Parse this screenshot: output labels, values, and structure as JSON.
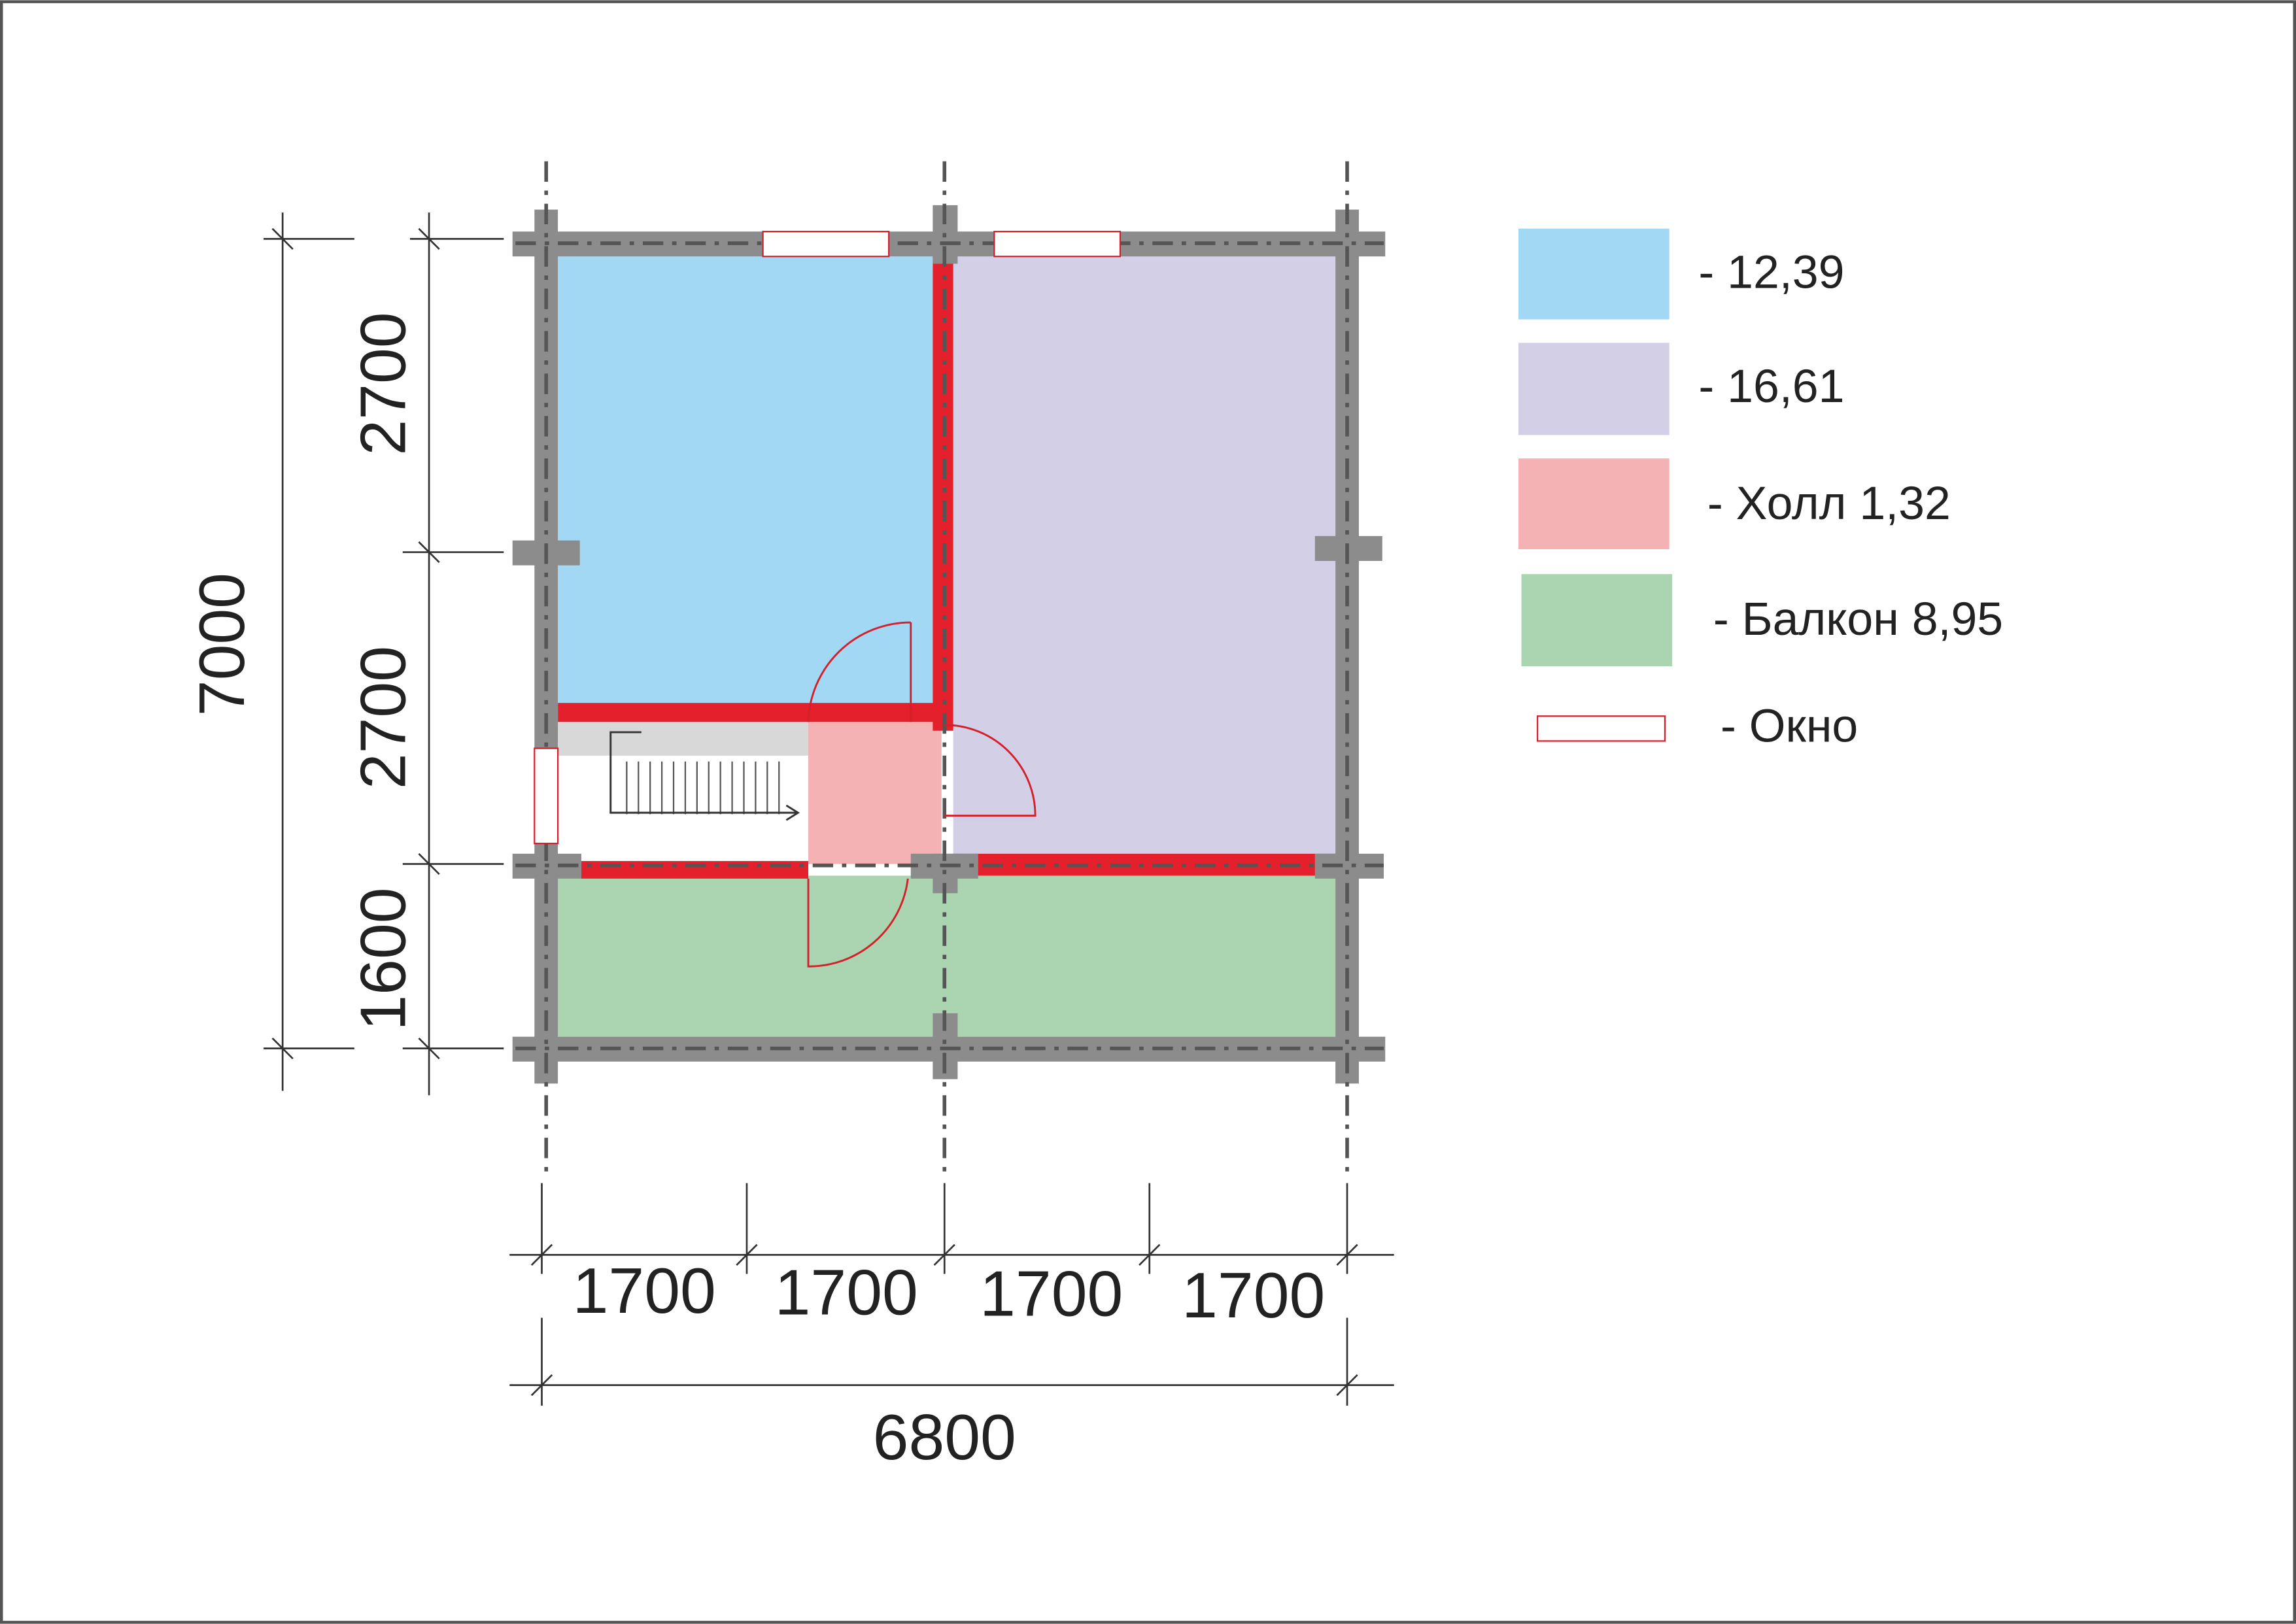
{
  "dimensions": {
    "left_total": "7000",
    "left": [
      "2700",
      "2700",
      "1600"
    ],
    "bottom": [
      "1700",
      "1700",
      "1700",
      "1700"
    ],
    "bottom_total": "6800"
  },
  "legend": [
    {
      "label": "- 12,39"
    },
    {
      "label": "- 16,61"
    },
    {
      "label": "- Холл 1,32"
    },
    {
      "label": "- Балкон 8,95"
    },
    {
      "label": "- Окно"
    }
  ]
}
